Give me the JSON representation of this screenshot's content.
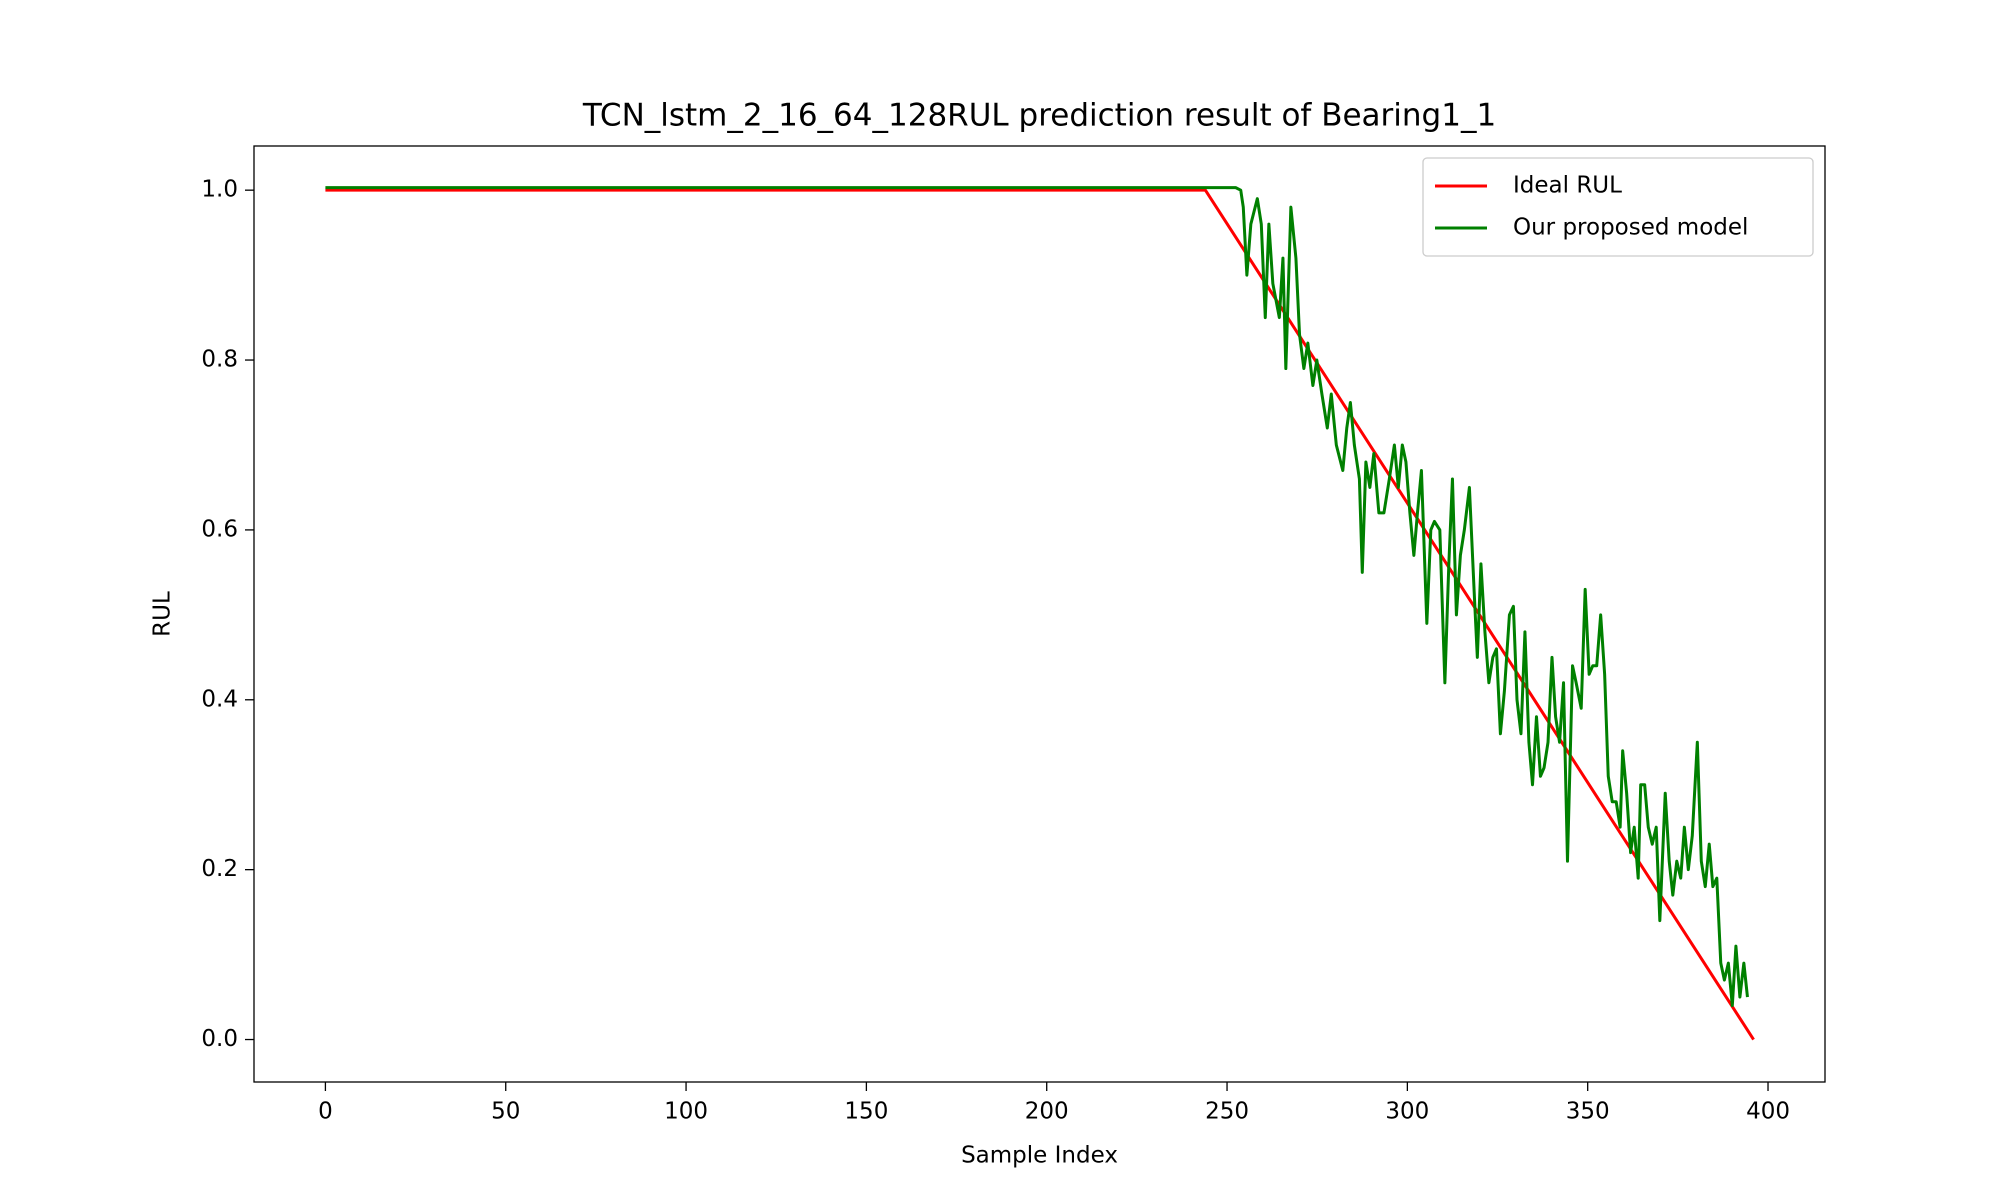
{
  "chart_data": {
    "type": "line",
    "title": "TCN_lstm_2_16_64_128RUL prediction result of Bearing1_1",
    "xlabel": "Sample Index",
    "ylabel": "RUL",
    "xlim": [
      -19.8,
      415.8
    ],
    "ylim": [
      -0.05,
      1.052
    ],
    "xticks": [
      0,
      50,
      100,
      150,
      200,
      250,
      300,
      350,
      400
    ],
    "yticks": [
      {
        "value": 0,
        "label": "0.0"
      },
      0.2,
      0.4,
      0.6,
      0.8,
      {
        "value": 1,
        "label": "1.0"
      }
    ],
    "legend": "upper right",
    "series": [
      {
        "name": "Ideal RUL",
        "color": "#ff0000",
        "x": [
          0,
          244,
          396
        ],
        "values": [
          1,
          1,
          0
        ]
      },
      {
        "name": "Our proposed model",
        "color": "#008000",
        "x": [
          0,
          252.4,
          253.8,
          254.5,
          255.5,
          256.6,
          258.4,
          259.5,
          260.6,
          261.6,
          262.7,
          264.5,
          265.5,
          266.3,
          267.7,
          269.1,
          270.1,
          271.3,
          272.4,
          273.8,
          274.9,
          276.3,
          277.8,
          278.9,
          280.3,
          282.1,
          283.2,
          284.2,
          285.3,
          286.7,
          287.5,
          288.5,
          289.6,
          290.7,
          292.1,
          293.5,
          295.0,
          296.4,
          297.5,
          298.6,
          299.6,
          300.7,
          301.8,
          302.8,
          303.9,
          305.4,
          306.5,
          307.5,
          309.0,
          310.4,
          311.5,
          312.5,
          313.6,
          314.7,
          315.8,
          317.2,
          318.6,
          319.4,
          320.4,
          321.5,
          322.6,
          323.7,
          324.7,
          325.8,
          326.9,
          328.3,
          329.4,
          330.4,
          331.5,
          332.6,
          333.7,
          334.7,
          335.8,
          336.9,
          337.9,
          339.0,
          340.1,
          341.1,
          342.2,
          343.3,
          344.4,
          345.8,
          346.8,
          348.2,
          349.3,
          350.4,
          351.4,
          352.5,
          353.6,
          354.7,
          355.7,
          356.8,
          357.9,
          359.0,
          359.7,
          360.8,
          361.9,
          362.9,
          364.0,
          364.7,
          365.8,
          366.8,
          367.9,
          369.0,
          370.0,
          371.5,
          372.6,
          373.6,
          374.7,
          375.8,
          376.8,
          377.9,
          379.0,
          380.4,
          381.5,
          382.6,
          383.7,
          384.7,
          385.8,
          386.9,
          387.9,
          389.0,
          390.1,
          391.1,
          392.2,
          393.3,
          394.3
        ],
        "values": [
          1.003,
          1.003,
          1.0,
          0.98,
          0.9,
          0.96,
          0.99,
          0.96,
          0.85,
          0.96,
          0.89,
          0.85,
          0.92,
          0.79,
          0.98,
          0.92,
          0.83,
          0.79,
          0.82,
          0.77,
          0.8,
          0.76,
          0.72,
          0.76,
          0.7,
          0.67,
          0.72,
          0.75,
          0.7,
          0.66,
          0.55,
          0.68,
          0.65,
          0.69,
          0.62,
          0.62,
          0.66,
          0.7,
          0.65,
          0.7,
          0.68,
          0.62,
          0.57,
          0.62,
          0.67,
          0.49,
          0.6,
          0.61,
          0.6,
          0.42,
          0.56,
          0.66,
          0.5,
          0.57,
          0.6,
          0.65,
          0.52,
          0.45,
          0.56,
          0.48,
          0.42,
          0.45,
          0.46,
          0.36,
          0.41,
          0.5,
          0.51,
          0.4,
          0.36,
          0.48,
          0.35,
          0.3,
          0.38,
          0.31,
          0.32,
          0.35,
          0.45,
          0.38,
          0.35,
          0.42,
          0.21,
          0.44,
          0.42,
          0.39,
          0.53,
          0.43,
          0.44,
          0.44,
          0.5,
          0.43,
          0.31,
          0.28,
          0.28,
          0.25,
          0.34,
          0.29,
          0.22,
          0.25,
          0.19,
          0.3,
          0.3,
          0.25,
          0.23,
          0.25,
          0.14,
          0.29,
          0.21,
          0.17,
          0.21,
          0.19,
          0.25,
          0.2,
          0.24,
          0.35,
          0.21,
          0.18,
          0.23,
          0.18,
          0.19,
          0.09,
          0.07,
          0.09,
          0.04,
          0.11,
          0.05,
          0.09,
          0.05
        ]
      }
    ]
  }
}
